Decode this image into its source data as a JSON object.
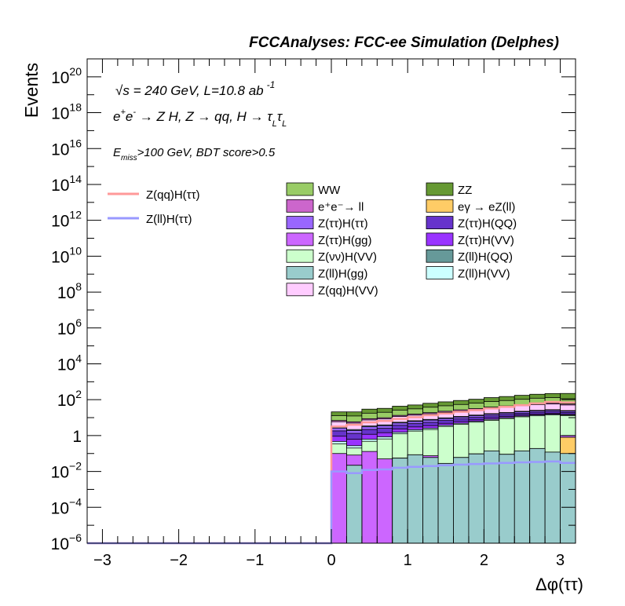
{
  "chart_data": {
    "type": "area",
    "title": "FCCAnalyses: FCC-ee Simulation (Delphes)",
    "xlabel": "Δφ(ττ)",
    "ylabel": "Events",
    "xlim": [
      -3.2,
      3.2
    ],
    "ylim": [
      1e-06,
      1e+21
    ],
    "y_scale": "log",
    "grid": false,
    "x_ticks": [
      {
        "v": -3,
        "label": "−3"
      },
      {
        "v": -2,
        "label": "−2"
      },
      {
        "v": -1,
        "label": "−1"
      },
      {
        "v": 0,
        "label": "0"
      },
      {
        "v": 1,
        "label": "1"
      },
      {
        "v": 2,
        "label": "2"
      },
      {
        "v": 3,
        "label": "3"
      }
    ],
    "y_ticks": [
      {
        "exp": -6,
        "label": "10",
        "sup": "−6"
      },
      {
        "exp": -4,
        "label": "10",
        "sup": "−4"
      },
      {
        "exp": -2,
        "label": "10",
        "sup": "−2"
      },
      {
        "exp": 0,
        "label": "1",
        "sup": ""
      },
      {
        "exp": 2,
        "label": "10",
        "sup": "2"
      },
      {
        "exp": 4,
        "label": "10",
        "sup": "4"
      },
      {
        "exp": 6,
        "label": "10",
        "sup": "6"
      },
      {
        "exp": 8,
        "label": "10",
        "sup": "8"
      },
      {
        "exp": 10,
        "label": "10",
        "sup": "10"
      },
      {
        "exp": 12,
        "label": "10",
        "sup": "12"
      },
      {
        "exp": 14,
        "label": "10",
        "sup": "14"
      },
      {
        "exp": 16,
        "label": "10",
        "sup": "16"
      },
      {
        "exp": 18,
        "label": "10",
        "sup": "18"
      },
      {
        "exp": 20,
        "label": "10",
        "sup": "20"
      }
    ],
    "annotations": {
      "energy": {
        "sqrt": "√",
        "s": "s",
        "text": " = 240 GeV, L=10.8 ab",
        "sup": "-1"
      },
      "process": {
        "e": "e",
        "plus": "+",
        "e2": "e",
        "minus": "-",
        "mid": " → Z H, Z  → qq, H  → ",
        "tau1": "τ",
        "l1": "L",
        "tau2": "τ",
        "l2": "L"
      },
      "selection": {
        "E": "E",
        "sub": "miss",
        "text": ">100 GeV, BDT score>0.5"
      }
    },
    "bin_edges": [
      0,
      0.2,
      0.4,
      0.6,
      0.8,
      1.0,
      1.2,
      1.4,
      1.6,
      1.8,
      2.0,
      2.2,
      2.4,
      2.6,
      2.8,
      3.0,
      3.2
    ],
    "stacked": [
      {
        "name": "Z(ll)H(gg)",
        "color": "#99cccc",
        "values": [
          1e-06,
          0.022,
          1e-06,
          1e-06,
          0.055,
          0.085,
          0.06,
          0.028,
          0.06,
          0.095,
          0.14,
          0.09,
          0.14,
          0.19,
          0.12,
          0.1
        ]
      },
      {
        "name": "eγ → eZ(ll)",
        "color": "#ffcc66",
        "values": [
          0,
          0,
          0,
          0,
          0,
          0,
          0,
          0,
          0,
          0,
          0,
          0,
          0,
          0,
          0,
          0.7
        ]
      },
      {
        "name": "Z(ττ)H(gg)",
        "color": "#cc66ff",
        "values": [
          0.1,
          0.06,
          0.13,
          0.05,
          0,
          0,
          0.015,
          0,
          0,
          0,
          0,
          0,
          0,
          0,
          0,
          0.2
        ]
      },
      {
        "name": "Z(νν)H(VV)",
        "color": "#ccffcc",
        "values": [
          0.25,
          0.12,
          0.35,
          0.6,
          1.2,
          1.7,
          2.1,
          3.2,
          4.2,
          5.5,
          7.0,
          8.8,
          11.0,
          12.5,
          14.0,
          12.0
        ]
      },
      {
        "name": "Z(ll)H(VV)",
        "color": "#ccffff",
        "values": [
          0.12,
          0.07,
          0.15,
          0.2,
          0.28,
          0.35,
          0.4,
          0.5,
          0.6,
          0.7,
          0.9,
          1.0,
          1.2,
          1.4,
          1.5,
          1.3
        ]
      },
      {
        "name": "Z(ττ)H(VV)",
        "color": "#9933ff",
        "values": [
          0.45,
          0.35,
          0.55,
          0.6,
          0.8,
          0.9,
          1.0,
          1.1,
          1.2,
          1.3,
          1.5,
          1.6,
          1.8,
          2.0,
          2.1,
          1.8
        ]
      },
      {
        "name": "Z(ττ)H(QQ)",
        "color": "#6633cc",
        "values": [
          0.9,
          0.7,
          1.0,
          1.1,
          1.4,
          1.6,
          1.9,
          2.1,
          2.4,
          2.7,
          3.0,
          3.3,
          3.6,
          4.0,
          4.2,
          3.6
        ]
      },
      {
        "name": "Z(ττ)H(ττ)",
        "color": "#9966ff",
        "values": [
          0.8,
          0.6,
          0.9,
          1.0,
          1.3,
          1.5,
          1.8,
          2.0,
          2.3,
          2.6,
          2.9,
          3.2,
          3.5,
          3.8,
          4.0,
          3.5
        ]
      },
      {
        "name": "Z(ll)H(QQ)",
        "color": "#669999",
        "values": [
          0.3,
          0.25,
          0.35,
          0.4,
          0.5,
          0.6,
          0.7,
          0.8,
          0.9,
          1.0,
          1.2,
          1.3,
          1.4,
          1.6,
          1.7,
          1.5
        ]
      },
      {
        "name": "Z(qq)H(VV)",
        "color": "#ffccff",
        "values": [
          3.0,
          2.8,
          4.0,
          4.5,
          6.0,
          7.0,
          8.5,
          10.0,
          12.0,
          14.0,
          17.0,
          20.0,
          24.0,
          28.0,
          30.0,
          26.0
        ]
      },
      {
        "name": "e⁺e⁻→ ll",
        "color": "#cc66cc",
        "values": [
          1.0,
          0.9,
          1.3,
          1.4,
          1.8,
          2.1,
          2.5,
          3.0,
          3.5,
          4.0,
          5.0,
          5.5,
          6.5,
          7.5,
          8.0,
          7.0
        ]
      },
      {
        "name": "WW",
        "color": "#99cc66",
        "values": [
          6.0,
          6.5,
          9.0,
          10.0,
          13.0,
          15.0,
          19.0,
          23.0,
          27.0,
          32.0,
          40.0,
          45.0,
          52.0,
          60.0,
          65.0,
          55.0
        ]
      },
      {
        "name": "ZZ",
        "color": "#669933",
        "values": [
          8.0,
          8.5,
          12.0,
          13.0,
          17.0,
          20.0,
          25.0,
          30.0,
          36.0,
          42.0,
          52.0,
          60.0,
          70.0,
          80.0,
          90.0,
          110.0
        ]
      }
    ],
    "signal_lines": [
      {
        "name": "Z(qq)H(ττ)",
        "color": "#ff9999",
        "values": [
          3.2,
          4.0,
          5.5,
          6.5,
          8.5,
          10.5,
          13.5,
          17.0,
          21.0,
          26.0,
          33.0,
          40.0,
          50.0,
          62.0,
          75.0,
          70.0
        ]
      },
      {
        "name": "Z(ll)H(ττ)",
        "color": "#9999ff",
        "values": [
          0.01,
          0.008,
          0.012,
          0.013,
          0.016,
          0.018,
          0.02,
          0.022,
          0.024,
          0.026,
          0.028,
          0.03,
          0.032,
          0.034,
          0.036,
          0.03
        ]
      }
    ],
    "legend": {
      "left": [
        "Z(qq)H(ττ)",
        "Z(ll)H(ττ)"
      ],
      "col1": [
        {
          "label": "WW",
          "color": "#99cc66"
        },
        {
          "label": "e⁺e⁻→ ll",
          "color": "#cc66cc"
        },
        {
          "label": "Z(ττ)H(ττ)",
          "color": "#9966ff"
        },
        {
          "label": "Z(ττ)H(gg)",
          "color": "#cc66ff"
        },
        {
          "label": "Z(νν)H(VV)",
          "color": "#ccffcc"
        },
        {
          "label": "Z(ll)H(gg)",
          "color": "#99cccc"
        },
        {
          "label": "Z(qq)H(VV)",
          "color": "#ffccff"
        }
      ],
      "col2": [
        {
          "label": "ZZ",
          "color": "#669933"
        },
        {
          "label": "eγ → eZ(ll)",
          "color": "#ffcc66"
        },
        {
          "label": "Z(ττ)H(QQ)",
          "color": "#6633cc"
        },
        {
          "label": "Z(ττ)H(VV)",
          "color": "#9933ff"
        },
        {
          "label": "Z(ll)H(QQ)",
          "color": "#669999"
        },
        {
          "label": "Z(ll)H(VV)",
          "color": "#ccffff"
        }
      ]
    }
  }
}
